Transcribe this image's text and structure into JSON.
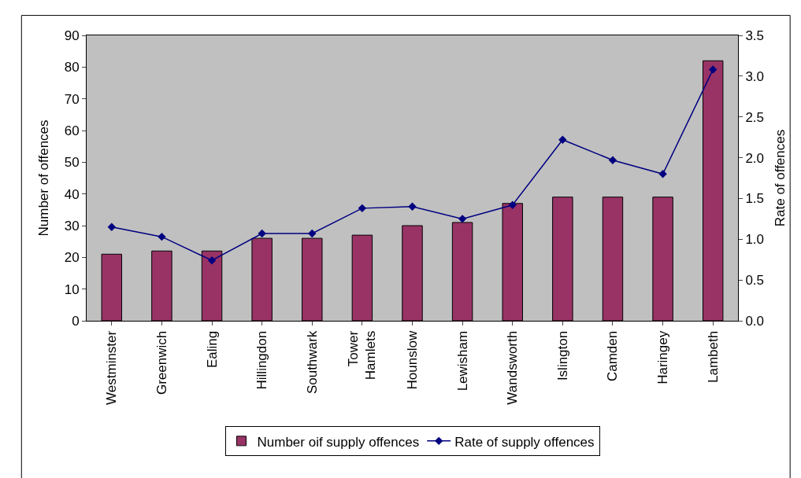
{
  "chart_data": {
    "type": "bar",
    "xlabel": null,
    "ylabel": "Number of offences",
    "y2label": "Rate of offences",
    "categories": [
      "Westminster",
      "Greenwich",
      "Ealing",
      "Hillingdon",
      "Southwark",
      "Tower Hamlets",
      "Hounslow",
      "Lewisham",
      "Wandsworth",
      "Islington",
      "Camden",
      "Haringey",
      "Lambeth"
    ],
    "series": [
      {
        "name": "Number oif supply offences",
        "color": "#993366",
        "values": [
          21,
          22,
          22,
          26,
          26,
          27,
          30,
          31,
          37,
          39,
          39,
          39,
          82
        ]
      },
      {
        "name": "Rate of supply offences",
        "type": "line",
        "axis": "y2",
        "color": "#000080",
        "marker": "diamond",
        "values": [
          1.15,
          1.03,
          0.74,
          1.07,
          1.07,
          1.38,
          1.4,
          1.25,
          1.42,
          2.22,
          1.97,
          1.8,
          3.08
        ]
      }
    ],
    "ylim": [
      0,
      90
    ],
    "yticks": [
      0,
      10,
      20,
      30,
      40,
      50,
      60,
      70,
      80,
      90
    ],
    "y2lim": [
      0,
      3.5
    ],
    "y2ticks": [
      {
        "value": 0,
        "label": "0.0"
      },
      {
        "value": 0.5,
        "label": "0.5"
      },
      {
        "value": 1,
        "label": "1.0"
      },
      {
        "value": 1.5,
        "label": "1.5"
      },
      {
        "value": 2,
        "label": "2.0"
      },
      {
        "value": 2.5,
        "label": "2.5"
      },
      {
        "value": 3,
        "label": "3.0"
      },
      {
        "value": 3.5,
        "label": "3.5"
      }
    ],
    "grid": false,
    "legend": "bottom"
  }
}
